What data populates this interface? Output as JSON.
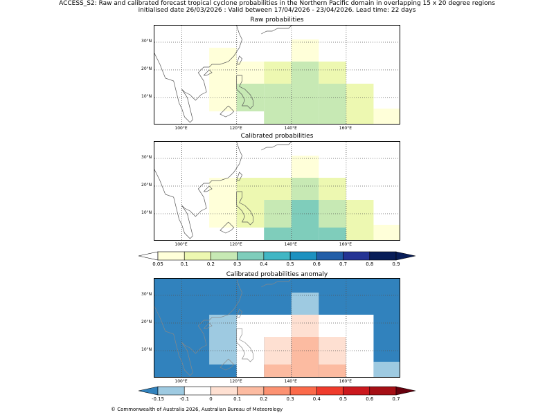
{
  "title_line1": "ACCESS_S2: Raw and calibrated forecast tropical cyclone probabilities in the Northern Pacific domain in overlapping 15 x 20 degree regions",
  "title_line2": "initialised date 26/03/2026 :  Valid between 17/04/2026 - 23/04/2026. Lead time: 22 days",
  "copyright": "© Commonwealth of Australia 2026, Australian Bureau of Meteorology",
  "lat_labels": [
    "30°N",
    "20°N",
    "10°N"
  ],
  "lon_labels": [
    "100°E",
    "120°E",
    "140°E",
    "160°E"
  ],
  "prob_colors": [
    "#ffffd9",
    "#edf8b1",
    "#c7e9b4",
    "#7fcdbb",
    "#41b6c4",
    "#1d91c0",
    "#225ea8",
    "#253494",
    "#081d58"
  ],
  "prob_ticks": [
    "0.05",
    "0.1",
    "0.2",
    "0.3",
    "0.4",
    "0.5",
    "0.6",
    "0.7",
    "0.8",
    "0.9"
  ],
  "anom_colors": [
    "#9ecae1",
    "#ffffff",
    "#fee0d2",
    "#fcbba1",
    "#fc9272",
    "#fb6a4a",
    "#ef3b2c",
    "#cb181d",
    "#a50f15"
  ],
  "anom_ticks": [
    "-0.15",
    "-0.1",
    "0",
    "0.1",
    "0.2",
    "0.3",
    "0.4",
    "0.5",
    "0.6",
    "0.7"
  ],
  "chart_data": [
    {
      "type": "heatmap",
      "title": "Raw probabilities",
      "lon_range": [
        90,
        180
      ],
      "lat_range": [
        0,
        36
      ],
      "cells": [
        {
          "lon": [
            110,
            120
          ],
          "lat": [
            5,
            28
          ],
          "v": 0.06
        },
        {
          "lon": [
            120,
            130
          ],
          "lat": [
            15,
            23
          ],
          "v": 0.06
        },
        {
          "lon": [
            120,
            130
          ],
          "lat": [
            5,
            15
          ],
          "v": 0.2
        },
        {
          "lon": [
            130,
            140
          ],
          "lat": [
            15,
            23
          ],
          "v": 0.1
        },
        {
          "lon": [
            130,
            140
          ],
          "lat": [
            0,
            15
          ],
          "v": 0.2
        },
        {
          "lon": [
            140,
            150
          ],
          "lat": [
            23,
            31
          ],
          "v": 0.06
        },
        {
          "lon": [
            140,
            150
          ],
          "lat": [
            0,
            23
          ],
          "v": 0.2
        },
        {
          "lon": [
            150,
            160
          ],
          "lat": [
            15,
            23
          ],
          "v": 0.1
        },
        {
          "lon": [
            150,
            160
          ],
          "lat": [
            0,
            15
          ],
          "v": 0.2
        },
        {
          "lon": [
            160,
            170
          ],
          "lat": [
            0,
            15
          ],
          "v": 0.1
        },
        {
          "lon": [
            170,
            180
          ],
          "lat": [
            0,
            6
          ],
          "v": 0.06
        }
      ]
    },
    {
      "type": "heatmap",
      "title": "Calibrated probabilities",
      "lon_range": [
        90,
        180
      ],
      "lat_range": [
        0,
        36
      ],
      "cells": [
        {
          "lon": [
            110,
            120
          ],
          "lat": [
            5,
            23
          ],
          "v": 0.06
        },
        {
          "lon": [
            120,
            140
          ],
          "lat": [
            15,
            23
          ],
          "v": 0.1
        },
        {
          "lon": [
            120,
            130
          ],
          "lat": [
            5,
            15
          ],
          "v": 0.1
        },
        {
          "lon": [
            130,
            140
          ],
          "lat": [
            5,
            15
          ],
          "v": 0.2
        },
        {
          "lon": [
            130,
            140
          ],
          "lat": [
            0,
            5
          ],
          "v": 0.3
        },
        {
          "lon": [
            140,
            150
          ],
          "lat": [
            23,
            31
          ],
          "v": 0.06
        },
        {
          "lon": [
            140,
            150
          ],
          "lat": [
            15,
            23
          ],
          "v": 0.2
        },
        {
          "lon": [
            140,
            150
          ],
          "lat": [
            0,
            15
          ],
          "v": 0.3
        },
        {
          "lon": [
            150,
            160
          ],
          "lat": [
            15,
            23
          ],
          "v": 0.1
        },
        {
          "lon": [
            150,
            160
          ],
          "lat": [
            5,
            15
          ],
          "v": 0.2
        },
        {
          "lon": [
            150,
            160
          ],
          "lat": [
            0,
            5
          ],
          "v": 0.3
        },
        {
          "lon": [
            160,
            170
          ],
          "lat": [
            0,
            15
          ],
          "v": 0.1
        },
        {
          "lon": [
            170,
            180
          ],
          "lat": [
            0,
            6
          ],
          "v": 0.06
        }
      ]
    },
    {
      "type": "heatmap",
      "title": "Calibrated probabilities anomaly",
      "lon_range": [
        90,
        180
      ],
      "lat_range": [
        0,
        36
      ],
      "background_value": -0.2,
      "cells": [
        {
          "lon": [
            110,
            120
          ],
          "lat": [
            5,
            23
          ],
          "v": -0.12
        },
        {
          "lon": [
            120,
            170
          ],
          "lat": [
            15,
            23
          ],
          "v": -0.05
        },
        {
          "lon": [
            120,
            130
          ],
          "lat": [
            0,
            15
          ],
          "v": -0.05
        },
        {
          "lon": [
            140,
            150
          ],
          "lat": [
            23,
            31
          ],
          "v": -0.12
        },
        {
          "lon": [
            140,
            150
          ],
          "lat": [
            15,
            23
          ],
          "v": 0.05
        },
        {
          "lon": [
            130,
            140
          ],
          "lat": [
            5,
            15
          ],
          "v": 0.05
        },
        {
          "lon": [
            130,
            140
          ],
          "lat": [
            0,
            5
          ],
          "v": 0.15
        },
        {
          "lon": [
            140,
            150
          ],
          "lat": [
            0,
            15
          ],
          "v": 0.15
        },
        {
          "lon": [
            150,
            160
          ],
          "lat": [
            5,
            15
          ],
          "v": 0.05
        },
        {
          "lon": [
            150,
            160
          ],
          "lat": [
            0,
            5
          ],
          "v": 0.15
        },
        {
          "lon": [
            160,
            170
          ],
          "lat": [
            0,
            15
          ],
          "v": -0.05
        },
        {
          "lon": [
            170,
            180
          ],
          "lat": [
            0,
            6
          ],
          "v": -0.12
        }
      ]
    }
  ]
}
